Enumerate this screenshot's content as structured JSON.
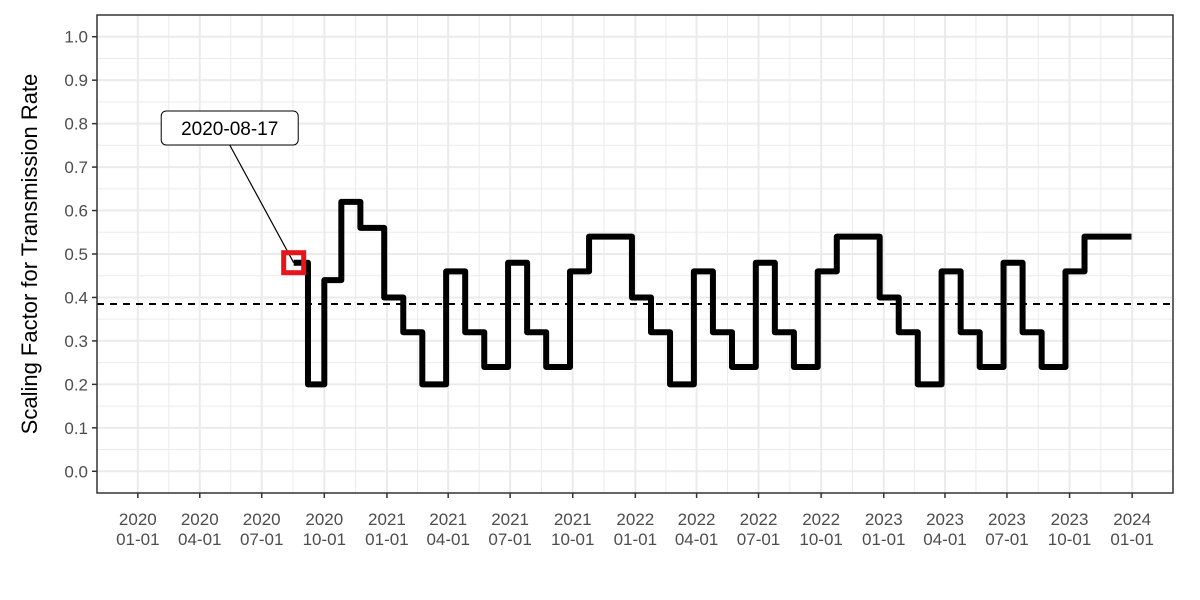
{
  "chart_data": {
    "type": "line",
    "title": "",
    "xlabel": "",
    "ylabel": "Scaling Factor for Transmission Rate",
    "x_axis": {
      "type": "date",
      "ticks": [
        "2020-01-01",
        "2020-04-01",
        "2020-07-01",
        "2020-10-01",
        "2021-01-01",
        "2021-04-01",
        "2021-07-01",
        "2021-10-01",
        "2022-01-01",
        "2022-04-01",
        "2022-07-01",
        "2022-10-01",
        "2023-01-01",
        "2023-04-01",
        "2023-07-01",
        "2023-10-01",
        "2024-01-01"
      ],
      "tick_labels": [
        [
          "2020",
          "01-01"
        ],
        [
          "2020",
          "04-01"
        ],
        [
          "2020",
          "07-01"
        ],
        [
          "2020",
          "10-01"
        ],
        [
          "2021",
          "01-01"
        ],
        [
          "2021",
          "04-01"
        ],
        [
          "2021",
          "07-01"
        ],
        [
          "2021",
          "10-01"
        ],
        [
          "2022",
          "01-01"
        ],
        [
          "2022",
          "04-01"
        ],
        [
          "2022",
          "07-01"
        ],
        [
          "2022",
          "10-01"
        ],
        [
          "2023",
          "01-01"
        ],
        [
          "2023",
          "04-01"
        ],
        [
          "2023",
          "07-01"
        ],
        [
          "2023",
          "10-01"
        ],
        [
          "2024",
          "01-01"
        ]
      ],
      "range": [
        "2019-11-02",
        "2024-03-01"
      ]
    },
    "y_axis": {
      "ticks": [
        0.0,
        0.1,
        0.2,
        0.3,
        0.4,
        0.5,
        0.6,
        0.7,
        0.8,
        0.9,
        1.0
      ],
      "tick_labels": [
        "0.0",
        "0.1",
        "0.2",
        "0.3",
        "0.4",
        "0.5",
        "0.6",
        "0.7",
        "0.8",
        "0.9",
        "1.0"
      ],
      "ylim": [
        -0.05,
        1.05
      ]
    },
    "grid": true,
    "series": [
      {
        "color": "#000000",
        "shape": "step",
        "points": [
          [
            "2020-08-17",
            0.48
          ],
          [
            "2020-09-07",
            0.2
          ],
          [
            "2020-10-01",
            0.44
          ],
          [
            "2020-10-26",
            0.62
          ],
          [
            "2020-11-23",
            0.56
          ],
          [
            "2020-12-28",
            0.4
          ],
          [
            "2021-01-25",
            0.32
          ],
          [
            "2021-02-22",
            0.2
          ],
          [
            "2021-03-29",
            0.46
          ],
          [
            "2021-04-26",
            0.32
          ],
          [
            "2021-05-24",
            0.24
          ],
          [
            "2021-06-28",
            0.48
          ],
          [
            "2021-07-26",
            0.32
          ],
          [
            "2021-08-23",
            0.24
          ],
          [
            "2021-09-27",
            0.46
          ],
          [
            "2021-10-25",
            0.54
          ],
          [
            "2021-12-27",
            0.4
          ],
          [
            "2022-01-24",
            0.32
          ],
          [
            "2022-02-21",
            0.2
          ],
          [
            "2022-03-28",
            0.46
          ],
          [
            "2022-04-25",
            0.32
          ],
          [
            "2022-05-23",
            0.24
          ],
          [
            "2022-06-27",
            0.48
          ],
          [
            "2022-07-25",
            0.32
          ],
          [
            "2022-08-22",
            0.24
          ],
          [
            "2022-09-26",
            0.46
          ],
          [
            "2022-10-24",
            0.54
          ],
          [
            "2022-12-26",
            0.4
          ],
          [
            "2023-01-23",
            0.32
          ],
          [
            "2023-02-20",
            0.2
          ],
          [
            "2023-03-27",
            0.46
          ],
          [
            "2023-04-24",
            0.32
          ],
          [
            "2023-05-22",
            0.24
          ],
          [
            "2023-06-26",
            0.48
          ],
          [
            "2023-07-24",
            0.32
          ],
          [
            "2023-08-21",
            0.24
          ],
          [
            "2023-09-25",
            0.46
          ],
          [
            "2023-10-23",
            0.54
          ],
          [
            "2023-12-31",
            0.54
          ]
        ]
      }
    ],
    "reference_line": {
      "y": 0.385,
      "style": "dashed",
      "color": "#000000"
    },
    "highlight": {
      "x": "2020-08-17",
      "y": 0.48,
      "color": "#e8141c"
    },
    "annotation": {
      "text": "2020-08-17",
      "target_x": "2020-08-17",
      "target_y": 0.48,
      "label_x": "2020-05-15",
      "label_y": 0.79
    }
  }
}
